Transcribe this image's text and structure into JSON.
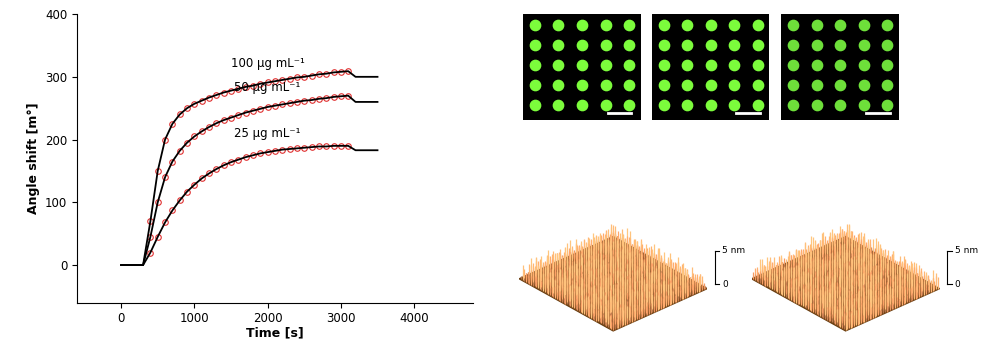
{
  "chart_data": {
    "type": "line",
    "xlabel": "Time [s]",
    "ylabel": "Angle shift [m°]",
    "x": [
      0,
      100,
      200,
      300,
      400,
      500,
      600,
      700,
      800,
      900,
      1000,
      1100,
      1200,
      1300,
      1400,
      1500,
      1600,
      1700,
      1800,
      1900,
      2000,
      2100,
      2200,
      2300,
      2400,
      2500,
      2600,
      2700,
      2800,
      2900,
      3000,
      3100,
      3200,
      3300,
      3400,
      3500
    ],
    "xlim": [
      -600,
      4800
    ],
    "ylim": [
      -60,
      400
    ],
    "xticks": [
      0,
      1000,
      2000,
      3000,
      4000
    ],
    "yticks": [
      0,
      100,
      200,
      300,
      400
    ],
    "series": [
      {
        "name": "100 μg mL⁻¹",
        "color": "#000000",
        "line_style": "solid",
        "values": [
          0,
          0,
          0,
          0,
          70,
          150,
          200,
          225,
          240,
          250,
          257,
          262,
          267,
          271,
          275,
          278,
          281,
          284,
          286,
          289,
          291,
          293,
          295,
          297,
          299,
          300,
          302,
          304,
          305,
          307,
          308,
          309,
          300,
          300,
          300,
          300
        ]
      },
      {
        "name": "50 μg mL⁻¹",
        "color": "#000000",
        "line_style": "solid",
        "values": [
          0,
          0,
          0,
          0,
          45,
          100,
          140,
          165,
          182,
          195,
          205,
          213,
          220,
          226,
          231,
          235,
          239,
          243,
          246,
          249,
          252,
          254,
          256,
          258,
          260,
          262,
          263,
          265,
          266,
          268,
          269,
          270,
          260,
          260,
          260,
          260
        ]
      },
      {
        "name": "25 μg mL⁻¹",
        "color": "#000000",
        "line_style": "solid",
        "values": [
          0,
          0,
          0,
          0,
          20,
          45,
          68,
          87,
          103,
          117,
          128,
          138,
          146,
          153,
          159,
          164,
          168,
          172,
          175,
          178,
          180,
          182,
          184,
          185,
          186,
          187,
          188,
          189,
          189,
          190,
          190,
          190,
          183,
          183,
          183,
          183
        ]
      },
      {
        "color": "#e03030",
        "marker": "o",
        "line_style": "none",
        "values": [
          null,
          null,
          null,
          null,
          70,
          150,
          200,
          225,
          240,
          250,
          257,
          262,
          267,
          271,
          275,
          278,
          281,
          284,
          286,
          289,
          291,
          293,
          295,
          297,
          299,
          300,
          302,
          304,
          305,
          307,
          308,
          309,
          null,
          null,
          null,
          null
        ]
      },
      {
        "color": "#e03030",
        "marker": "o",
        "line_style": "none",
        "values": [
          null,
          null,
          null,
          null,
          45,
          100,
          140,
          165,
          182,
          195,
          205,
          213,
          220,
          226,
          231,
          235,
          239,
          243,
          246,
          249,
          252,
          254,
          256,
          258,
          260,
          262,
          263,
          265,
          266,
          268,
          269,
          270,
          null,
          null,
          null,
          null
        ]
      },
      {
        "color": "#e03030",
        "marker": "o",
        "line_style": "none",
        "values": [
          null,
          null,
          null,
          null,
          20,
          45,
          68,
          87,
          103,
          117,
          128,
          138,
          146,
          153,
          159,
          164,
          168,
          172,
          175,
          178,
          180,
          182,
          184,
          185,
          186,
          187,
          188,
          189,
          189,
          190,
          190,
          190,
          null,
          null,
          null,
          null
        ]
      }
    ]
  },
  "fluorescence_images": [
    {
      "rows": 5,
      "cols": 5,
      "color": "#7cfc3c"
    },
    {
      "rows": 5,
      "cols": 5,
      "color": "#7cfc3c"
    },
    {
      "rows": 5,
      "cols": 5,
      "color": "#6ee03a"
    }
  ],
  "afm_images": [
    {
      "scale_labels": [
        "5 nm",
        "0"
      ]
    },
    {
      "scale_labels": [
        "5 nm",
        "0"
      ]
    }
  ]
}
